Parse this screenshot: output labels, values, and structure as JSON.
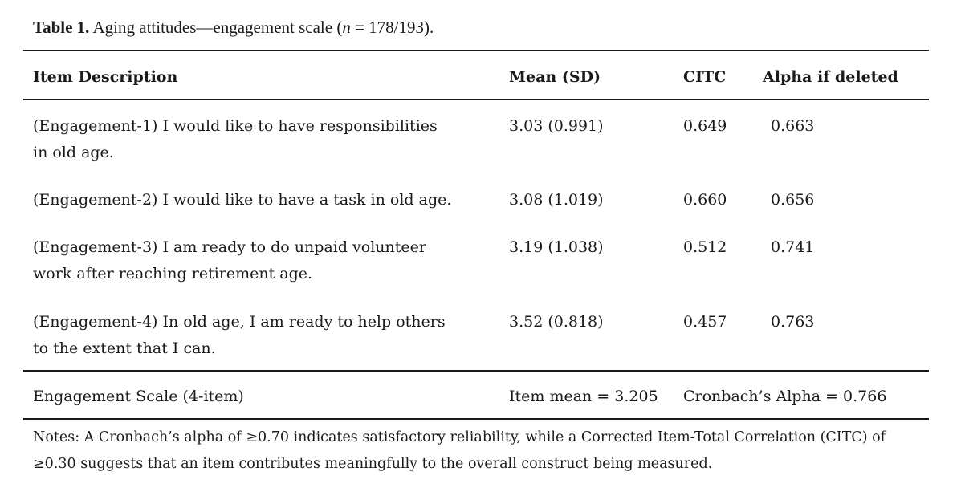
{
  "table": {
    "caption_label": "Table 1.",
    "caption_pre": " Aging attitudes—engagement scale (",
    "caption_n": "n",
    "caption_post": " = 178/193).",
    "headers": {
      "item": "Item Description",
      "mean": "Mean (SD)",
      "citc": "CITC",
      "alpha": "Alpha if deleted"
    },
    "rows": [
      {
        "desc_line1": "(Engagement-1) I would like to have responsibilities",
        "desc_line2": "in old age.",
        "mean_sd": "3.03 (0.991)",
        "citc": "0.649",
        "alpha": "0.663"
      },
      {
        "desc_line1": "(Engagement-2) I would like to have a task in old age.",
        "desc_line2": "",
        "mean_sd": "3.08 (1.019)",
        "citc": "0.660",
        "alpha": "0.656"
      },
      {
        "desc_line1": "(Engagement-3) I am ready to do unpaid volunteer",
        "desc_line2": "work after reaching retirement age.",
        "mean_sd": "3.19 (1.038)",
        "citc": "0.512",
        "alpha": "0.741"
      },
      {
        "desc_line1": "(Engagement-4) In old age, I am ready to help others",
        "desc_line2": "to the extent that I can.",
        "mean_sd": "3.52 (0.818)",
        "citc": "0.457",
        "alpha": "0.763"
      }
    ],
    "summary": {
      "label": "Engagement Scale (4-item)",
      "item_mean": "Item mean = 3.205",
      "cronbach": "Cronbach’s Alpha = 0.766"
    },
    "notes_line1": "Notes: A Cronbach’s alpha of ≥0.70 indicates satisfactory reliability, while a Corrected Item-Total Correlation (CITC) of",
    "notes_line2": "≥0.30 suggests that an item contributes meaningfully to the overall construct being measured."
  }
}
